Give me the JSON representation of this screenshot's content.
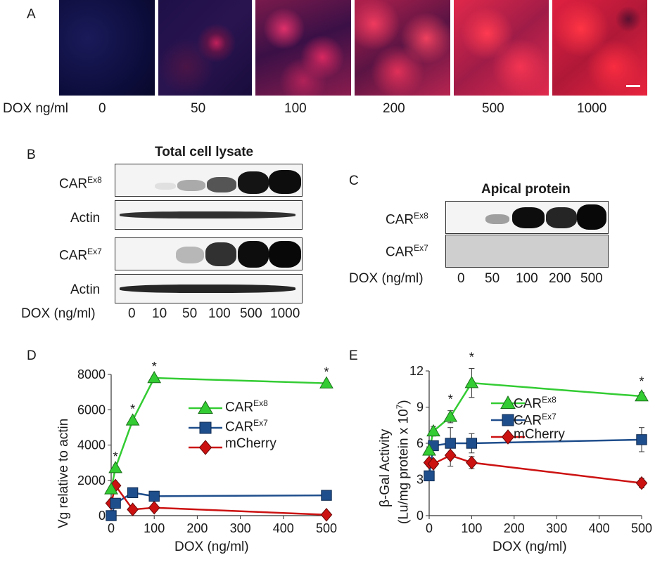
{
  "panels": {
    "A": "A",
    "B": "B",
    "C": "C",
    "D": "D",
    "E": "E"
  },
  "panelA": {
    "dox_label": "DOX ng/ml",
    "doses": [
      "0",
      "50",
      "100",
      "200",
      "500",
      "1000"
    ]
  },
  "panelB": {
    "title": "Total cell lysate",
    "rows": [
      {
        "base": "CAR",
        "sup": "Ex8"
      },
      {
        "base": "Actin",
        "sup": ""
      },
      {
        "base": "CAR",
        "sup": "Ex7"
      },
      {
        "base": "Actin",
        "sup": ""
      }
    ],
    "dox_label": "DOX (ng/ml)",
    "doses": [
      "0",
      "10",
      "50",
      "100",
      "500",
      "1000"
    ]
  },
  "panelC": {
    "title": "Apical protein",
    "rows": [
      {
        "base": "CAR",
        "sup": "Ex8"
      },
      {
        "base": "CAR",
        "sup": "Ex7"
      }
    ],
    "dox_label": "DOX (ng/ml)",
    "doses": [
      "0",
      "50",
      "100",
      "200",
      "500"
    ]
  },
  "chart_data": [
    {
      "type": "line",
      "panel": "D",
      "ylabel": "Vg relative to actin",
      "xlabel": "DOX (ng/ml)",
      "xlim": [
        0,
        500
      ],
      "ylim": [
        0,
        8000
      ],
      "xticks": [
        "0",
        "100",
        "200",
        "300",
        "400",
        "500"
      ],
      "yticks": [
        "0",
        "2000",
        "4000",
        "6000",
        "8000"
      ],
      "legend_placement": "center",
      "significance": [
        {
          "x": 10,
          "label": "*"
        },
        {
          "x": 50,
          "label": "*"
        },
        {
          "x": 100,
          "label": "*"
        },
        {
          "x": 500,
          "label": "*"
        }
      ],
      "series": [
        {
          "name": "CAR",
          "name_sup": "Ex8",
          "color": "#33cc33",
          "marker": "triangle",
          "x": [
            0,
            10,
            50,
            100,
            500
          ],
          "y": [
            1500,
            2700,
            5400,
            7800,
            7500
          ]
        },
        {
          "name": "CAR",
          "name_sup": "Ex7",
          "color": "#1f4e8c",
          "marker": "square",
          "x": [
            0,
            10,
            50,
            100,
            500
          ],
          "y": [
            0,
            700,
            1300,
            1100,
            1150
          ]
        },
        {
          "name": "mCherry",
          "name_sup": "",
          "color": "#cc1111",
          "marker": "diamond",
          "x": [
            0,
            10,
            50,
            100,
            500
          ],
          "y": [
            700,
            1700,
            350,
            450,
            50
          ]
        }
      ]
    },
    {
      "type": "line",
      "panel": "E",
      "ylabel_line1": "β-Gal Activity",
      "ylabel_line2": "(Lu/mg protein x 10",
      "ylabel_sup": "7",
      "ylabel_close": ")",
      "xlabel": "DOX (ng/ml)",
      "xlim": [
        0,
        500
      ],
      "ylim": [
        0,
        12
      ],
      "xticks": [
        "0",
        "100",
        "200",
        "300",
        "400",
        "500"
      ],
      "yticks": [
        "0",
        "3",
        "6",
        "9",
        "12"
      ],
      "legend_placement": "top-center",
      "significance": [
        {
          "x": 50,
          "label": "*"
        },
        {
          "x": 100,
          "label": "*"
        },
        {
          "x": 500,
          "label": "*"
        }
      ],
      "series": [
        {
          "name": "CAR",
          "name_sup": "Ex8",
          "color": "#33cc33",
          "marker": "triangle",
          "x": [
            0,
            10,
            50,
            100,
            500
          ],
          "y": [
            5.4,
            7.0,
            8.2,
            11.0,
            9.9
          ],
          "err": [
            0.3,
            0.4,
            0.5,
            1.2,
            0.3
          ]
        },
        {
          "name": "CAR",
          "name_sup": "Ex7",
          "color": "#1f4e8c",
          "marker": "square",
          "x": [
            0,
            10,
            50,
            100,
            500
          ],
          "y": [
            3.3,
            5.8,
            6.0,
            6.0,
            6.3
          ],
          "err": [
            0.3,
            0.4,
            1.3,
            0.8,
            1.0
          ]
        },
        {
          "name": "mCherry",
          "name_sup": "",
          "color": "#cc1111",
          "marker": "diamond",
          "x": [
            0,
            10,
            50,
            100,
            500
          ],
          "y": [
            4.4,
            4.3,
            5.0,
            4.4,
            2.7
          ],
          "err": [
            0.3,
            0.3,
            0.9,
            0.5,
            0.4
          ]
        }
      ]
    }
  ]
}
